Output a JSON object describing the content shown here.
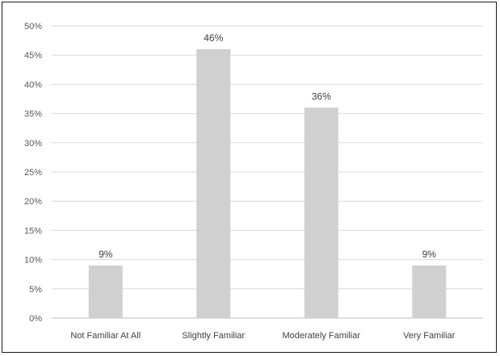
{
  "chart_data": {
    "type": "bar",
    "categories": [
      "Not Familiar At All",
      "Slightly Familiar",
      "Moderately Familiar",
      "Very Familiar"
    ],
    "values": [
      9,
      46,
      36,
      9
    ],
    "data_labels": [
      "9%",
      "46%",
      "36%",
      "9%"
    ],
    "ylim": [
      0,
      50
    ],
    "yticks": [
      "0%",
      "5%",
      "10%",
      "15%",
      "20%",
      "25%",
      "30%",
      "35%",
      "40%",
      "45%",
      "50%"
    ],
    "grid": true,
    "legend": "none",
    "bar_color": "#d0d0d0",
    "grid_color": "#d9d9d9"
  }
}
